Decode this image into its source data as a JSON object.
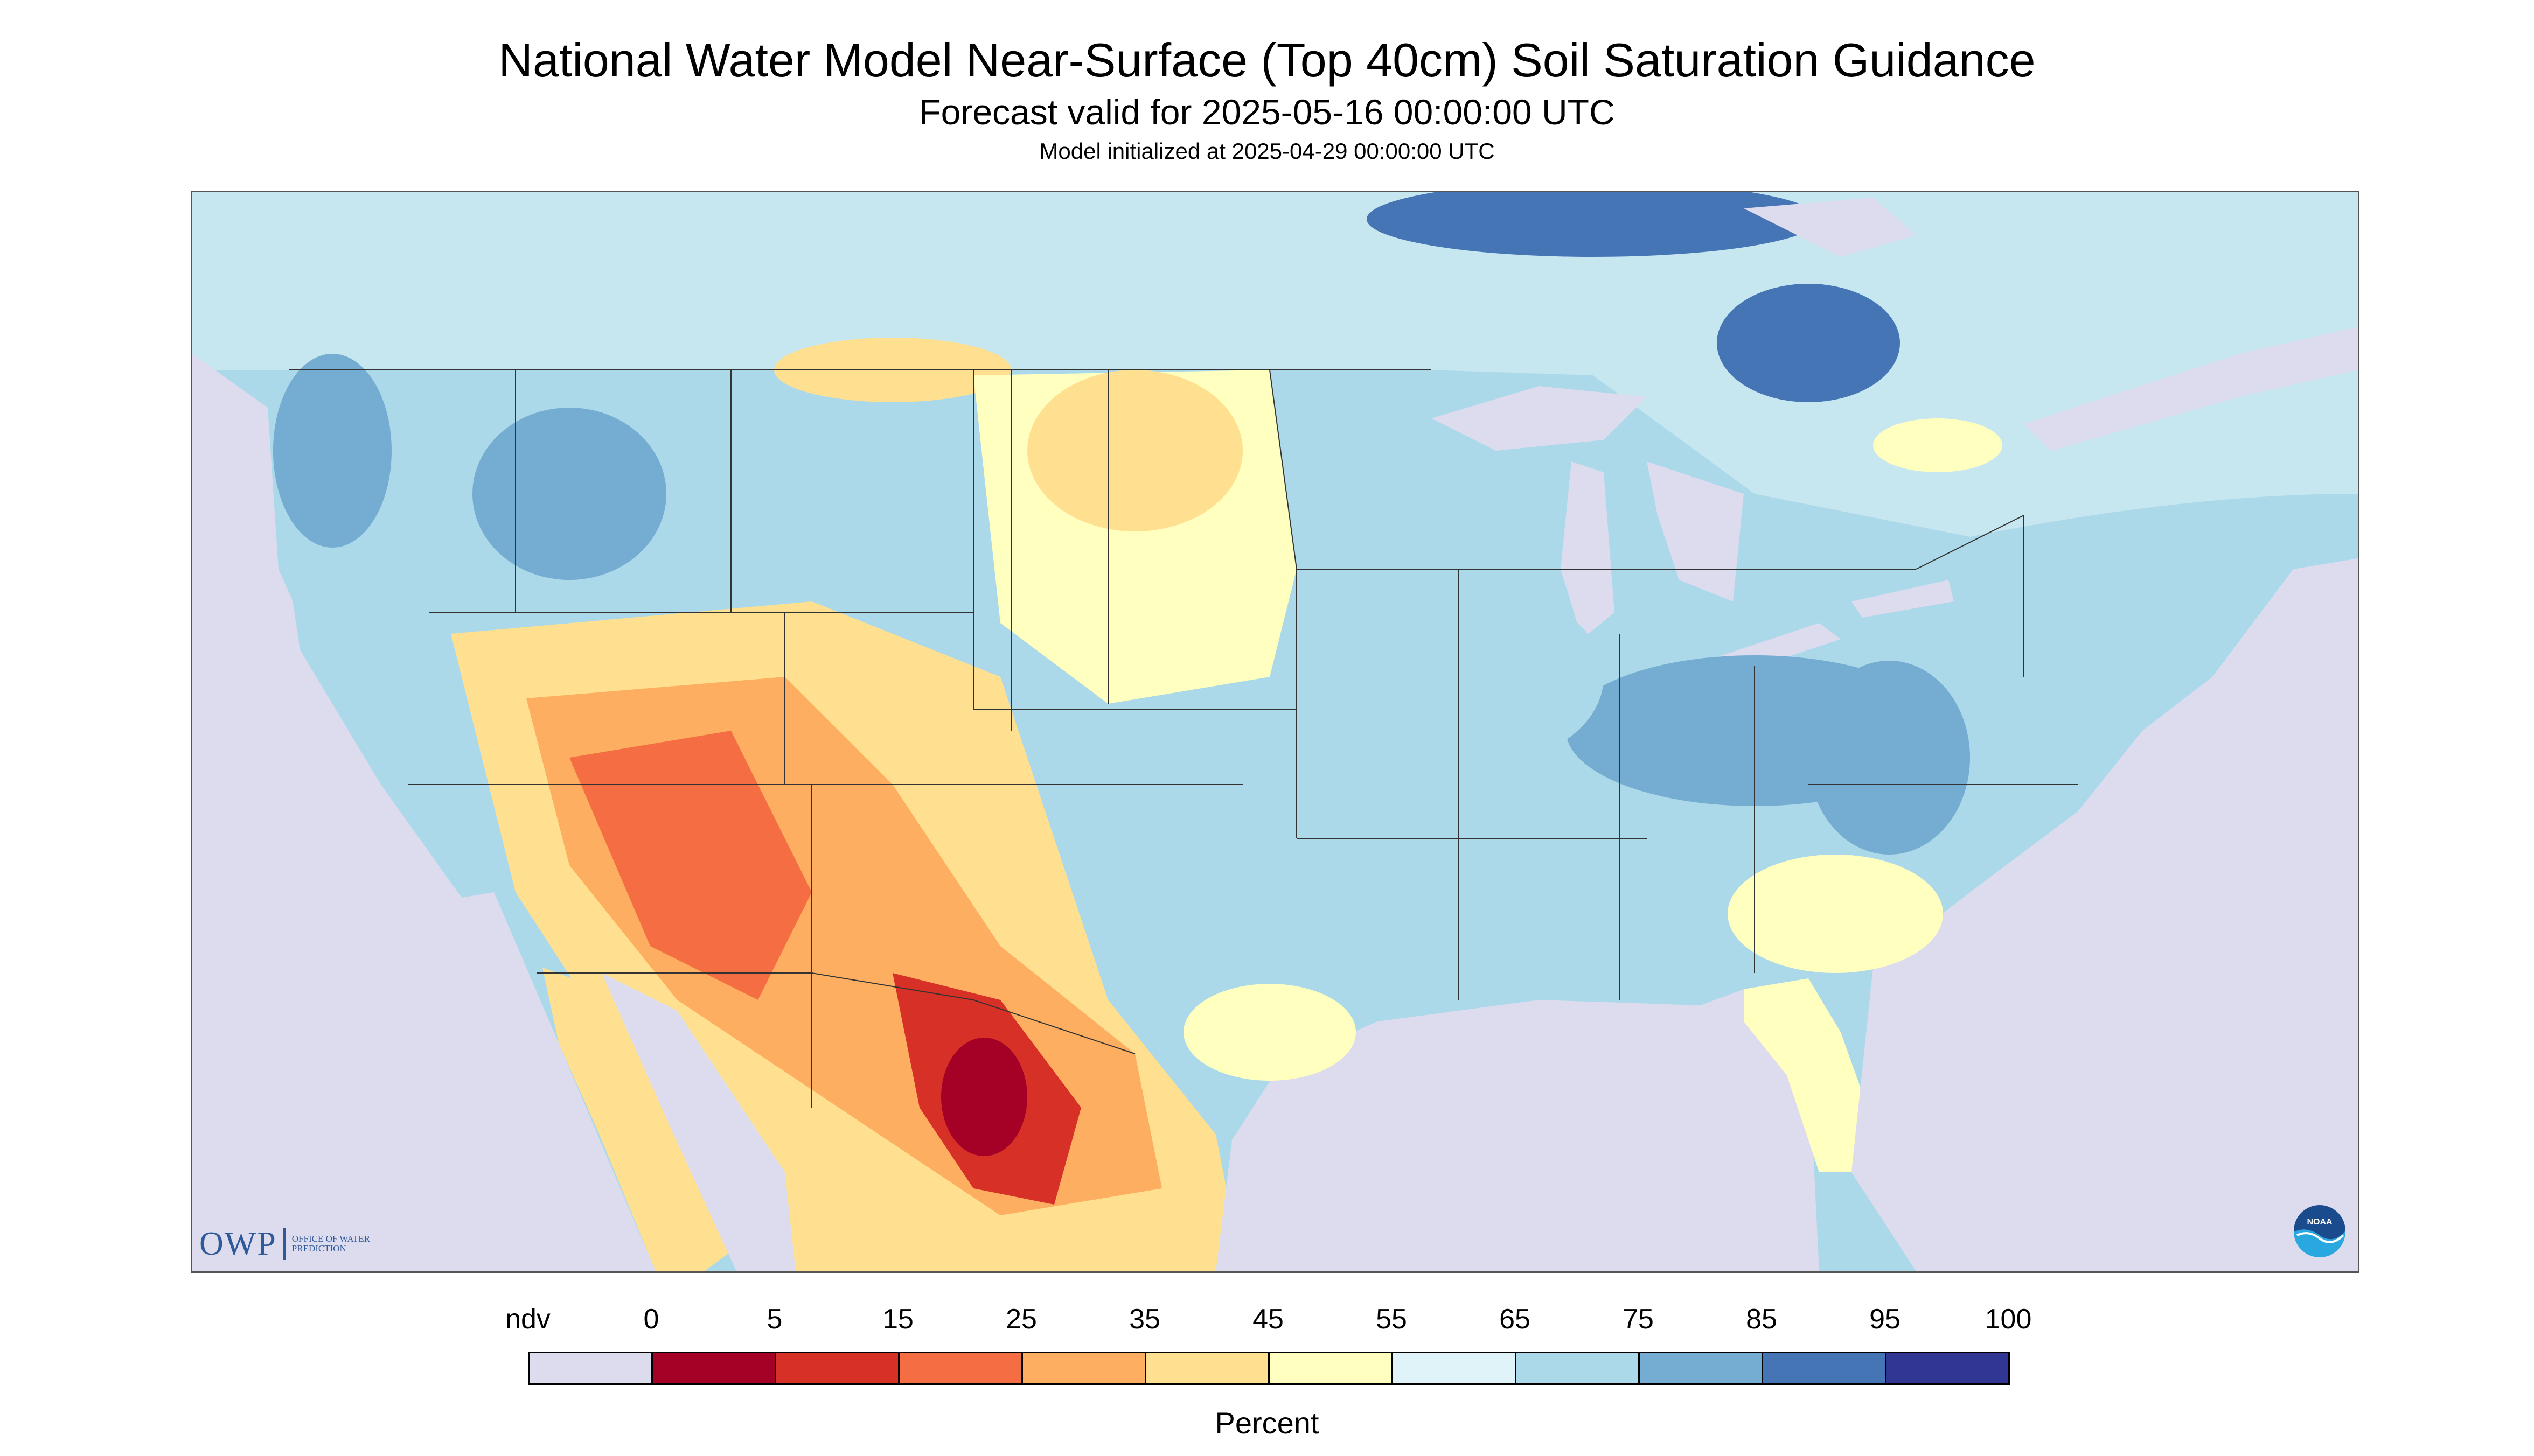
{
  "header": {
    "title": "National Water Model Near-Surface (Top 40cm) Soil Saturation Guidance",
    "subtitle": "Forecast valid for 2025-05-16 00:00:00 UTC",
    "init": "Model initialized at 2025-04-29 00:00:00 UTC"
  },
  "logos": {
    "owp_mark": "OWP",
    "owp_text": "OFFICE OF WATER PREDICTION",
    "noaa": "NOAA"
  },
  "legend": {
    "unit": "Percent",
    "bins": [
      {
        "label": "ndv",
        "color": "#dcdcee"
      },
      {
        "label": "0",
        "color": "#a50026"
      },
      {
        "label": "5",
        "color": "#d73027"
      },
      {
        "label": "15",
        "color": "#f46d43"
      },
      {
        "label": "25",
        "color": "#fdae61"
      },
      {
        "label": "35",
        "color": "#fee090"
      },
      {
        "label": "45",
        "color": "#ffffbf"
      },
      {
        "label": "55",
        "color": "#e0f3f8"
      },
      {
        "label": "65",
        "color": "#abd9e9"
      },
      {
        "label": "75",
        "color": "#74add1"
      },
      {
        "label": "85",
        "color": "#4575b4"
      },
      {
        "label": "95",
        "color": "#313695"
      }
    ],
    "last_label": "100"
  },
  "map": {
    "ocean_color": "#dcdcee",
    "land_base_color": "#abd9e9",
    "water_color": "#dcdcee"
  }
}
